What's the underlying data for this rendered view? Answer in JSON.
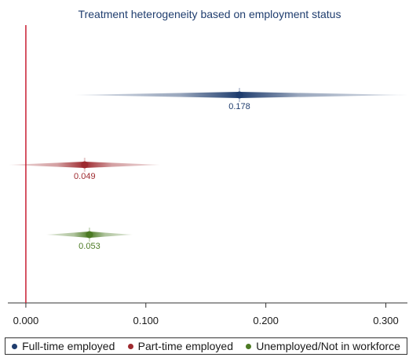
{
  "chart_data": {
    "type": "scatter",
    "title": "Treatment heterogeneity based on employment status",
    "xlim": [
      -0.015,
      0.318
    ],
    "x_ticks": [
      "0.000",
      "0.100",
      "0.200",
      "0.300"
    ],
    "x_tick_values": [
      0.0,
      0.1,
      0.2,
      0.3
    ],
    "reference_line_x": 0.0,
    "reference_line_color": "#c81e32",
    "grid": false,
    "legend_position": "bottom",
    "series": [
      {
        "name": "Full-time employed",
        "estimate": 0.178,
        "label": "0.178",
        "ci_low": 0.041,
        "ci_high": 0.318,
        "color": "#1f3d6e"
      },
      {
        "name": "Part-time employed",
        "estimate": 0.049,
        "label": "0.049",
        "ci_low": -0.014,
        "ci_high": 0.112,
        "color": "#9e2a2f"
      },
      {
        "name": "Unemployed/Not in workforce",
        "estimate": 0.053,
        "label": "0.053",
        "ci_low": 0.017,
        "ci_high": 0.089,
        "color": "#4c7a24"
      }
    ]
  }
}
